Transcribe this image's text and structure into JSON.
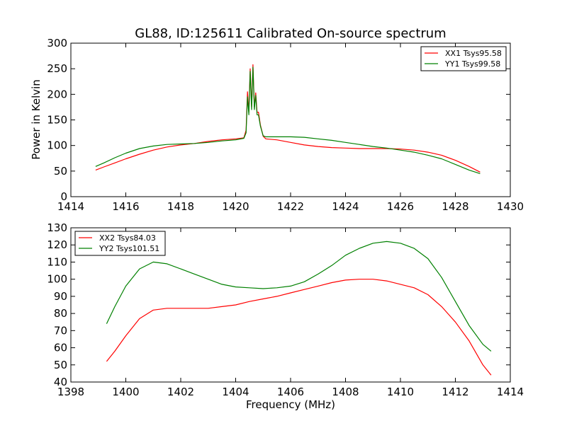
{
  "chart_data": [
    {
      "type": "line",
      "title": "GL88, ID:125611 Calibrated On-source spectrum",
      "xlabel": "",
      "ylabel": "Power in Kelvin",
      "xlim": [
        1414,
        1430
      ],
      "ylim": [
        0,
        300
      ],
      "xticks": [
        1414,
        1416,
        1418,
        1420,
        1422,
        1424,
        1426,
        1428,
        1430
      ],
      "yticks": [
        0,
        50,
        100,
        150,
        200,
        250,
        300
      ],
      "grid": false,
      "legend_position": "top-right",
      "series": [
        {
          "name": "XX1 Tsys95.58",
          "color": "#ff0000",
          "x": [
            1414.9,
            1415.2,
            1415.6,
            1416.0,
            1416.5,
            1417.0,
            1417.5,
            1418.0,
            1418.5,
            1419.0,
            1419.5,
            1420.0,
            1420.3,
            1420.38,
            1420.43,
            1420.48,
            1420.53,
            1420.58,
            1420.63,
            1420.68,
            1420.73,
            1420.78,
            1420.83,
            1420.9,
            1421.0,
            1421.1,
            1421.5,
            1422.0,
            1422.5,
            1423.0,
            1423.5,
            1424.0,
            1424.5,
            1425.0,
            1425.5,
            1426.0,
            1426.5,
            1427.0,
            1427.5,
            1428.0,
            1428.5,
            1428.9
          ],
          "y": [
            52,
            58,
            66,
            74,
            83,
            91,
            97,
            101,
            104,
            108,
            111,
            113,
            115,
            130,
            205,
            165,
            250,
            175,
            258,
            175,
            203,
            165,
            165,
            140,
            118,
            113,
            111,
            106,
            101,
            98,
            96,
            95,
            94,
            94,
            94,
            93,
            91,
            87,
            81,
            71,
            59,
            48
          ]
        },
        {
          "name": "YY1 Tsys99.58",
          "color": "#008000",
          "x": [
            1414.9,
            1415.2,
            1415.6,
            1416.0,
            1416.5,
            1417.0,
            1417.5,
            1418.0,
            1418.5,
            1419.0,
            1419.5,
            1420.0,
            1420.3,
            1420.38,
            1420.43,
            1420.48,
            1420.53,
            1420.58,
            1420.63,
            1420.68,
            1420.73,
            1420.78,
            1420.83,
            1420.9,
            1421.0,
            1421.1,
            1421.5,
            1422.0,
            1422.5,
            1423.0,
            1423.5,
            1424.0,
            1424.5,
            1425.0,
            1425.5,
            1426.0,
            1426.5,
            1427.0,
            1427.5,
            1428.0,
            1428.5,
            1428.9
          ],
          "y": [
            59,
            66,
            76,
            85,
            94,
            99,
            102,
            103,
            104,
            106,
            109,
            111,
            114,
            125,
            195,
            160,
            245,
            170,
            253,
            170,
            198,
            160,
            160,
            138,
            119,
            117,
            117,
            117,
            116,
            113,
            110,
            106,
            102,
            98,
            95,
            91,
            87,
            81,
            74,
            63,
            52,
            45
          ]
        }
      ]
    },
    {
      "type": "line",
      "title": "",
      "xlabel": "Frequency (MHz)",
      "ylabel": "",
      "xlim": [
        1398,
        1414
      ],
      "ylim": [
        40,
        130
      ],
      "xticks": [
        1398,
        1400,
        1402,
        1404,
        1406,
        1408,
        1410,
        1412,
        1414
      ],
      "yticks": [
        40,
        50,
        60,
        70,
        80,
        90,
        100,
        110,
        120,
        130
      ],
      "grid": false,
      "legend_position": "top-left",
      "series": [
        {
          "name": "XX2 Tsys84.03",
          "color": "#ff0000",
          "x": [
            1399.3,
            1399.6,
            1400.0,
            1400.5,
            1401.0,
            1401.5,
            1402.0,
            1402.5,
            1403.0,
            1403.5,
            1404.0,
            1404.5,
            1405.0,
            1405.5,
            1406.0,
            1406.5,
            1407.0,
            1407.5,
            1408.0,
            1408.5,
            1409.0,
            1409.5,
            1410.0,
            1410.5,
            1411.0,
            1411.5,
            1412.0,
            1412.5,
            1413.0,
            1413.3
          ],
          "y": [
            52,
            58,
            67,
            77,
            82,
            83,
            83,
            83,
            83,
            84,
            85,
            87,
            88.5,
            90,
            92,
            94,
            96,
            98,
            99.5,
            100,
            100,
            99,
            97,
            95,
            91,
            84,
            75,
            64,
            50,
            44
          ]
        },
        {
          "name": "YY2 Tsys101.51",
          "color": "#008000",
          "x": [
            1399.3,
            1399.6,
            1400.0,
            1400.5,
            1401.0,
            1401.5,
            1402.0,
            1402.5,
            1403.0,
            1403.5,
            1404.0,
            1404.5,
            1405.0,
            1405.5,
            1406.0,
            1406.5,
            1407.0,
            1407.5,
            1408.0,
            1408.5,
            1409.0,
            1409.5,
            1410.0,
            1410.5,
            1411.0,
            1411.5,
            1412.0,
            1412.5,
            1413.0,
            1413.3
          ],
          "y": [
            74,
            84,
            96,
            106,
            110,
            109,
            106,
            103,
            100,
            97,
            95.5,
            95,
            94.5,
            95,
            96,
            98.5,
            103,
            108,
            114,
            118,
            121,
            122,
            121,
            118,
            112,
            101,
            87,
            73,
            62,
            58
          ]
        }
      ]
    }
  ]
}
